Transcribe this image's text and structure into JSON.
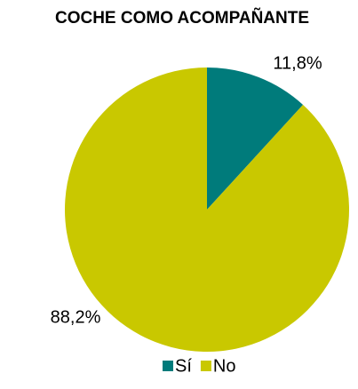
{
  "chart_data": {
    "type": "pie",
    "title": "COCHE COMO ACOMPAÑANTE",
    "categories": [
      "Sí",
      "No"
    ],
    "values": [
      11.8,
      88.2
    ],
    "value_labels": [
      "11,8%",
      "88,2%"
    ],
    "colors": [
      "#007b7b",
      "#c9c800"
    ],
    "legend": "bottom"
  }
}
